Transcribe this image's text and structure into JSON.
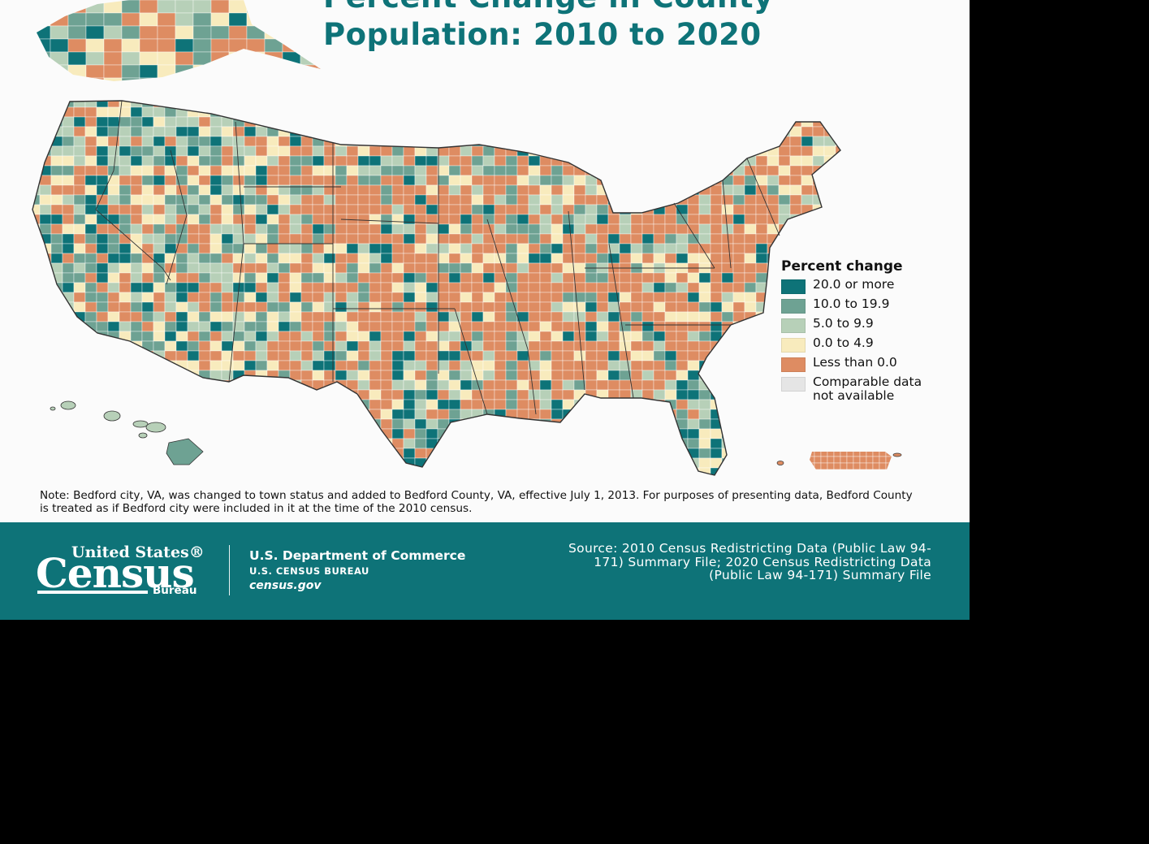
{
  "title": {
    "line1": "Percent Change in County",
    "line2": "Population: 2010 to 2020"
  },
  "legend": {
    "title": "Percent change",
    "items": [
      {
        "label": "20.0 or more",
        "color": "#0e7378"
      },
      {
        "label": "10.0 to 19.9",
        "color": "#6ea293"
      },
      {
        "label": "5.0 to 9.9",
        "color": "#b7d0b8"
      },
      {
        "label": "0.0 to 4.9",
        "color": "#f8ebbd"
      },
      {
        "label": "Less than 0.0",
        "color": "#de8c62"
      },
      {
        "label": "Comparable data\nnot available",
        "color": "#e5e5e5"
      }
    ]
  },
  "regions": {
    "conus": "contiguous-united-states",
    "alaska": "alaska",
    "hawaii": "hawaii",
    "puerto_rico": "puerto-rico"
  },
  "note": "Note: Bedford city, VA, was changed to town status and added to Bedford County, VA, effective July 1, 2013. For purposes of presenting data, Bedford County is treated as if Bedford city were included in it at the time of the 2010 census.",
  "footer": {
    "logo": {
      "line1": "United States®",
      "line2": "Census",
      "line3": "Bureau"
    },
    "department": "U.S. Department of Commerce",
    "bureau": "U.S. CENSUS BUREAU",
    "url": "census.gov",
    "source": "Source: 2010 Census Redistricting Data (Public Law 94-171) Summary File; 2020 Census Redistricting Data (Public Law 94-171) Summary File"
  },
  "colors": {
    "brand_teal": "#0e7378",
    "decline": "#de8c62",
    "growth_high": "#0e7378"
  }
}
